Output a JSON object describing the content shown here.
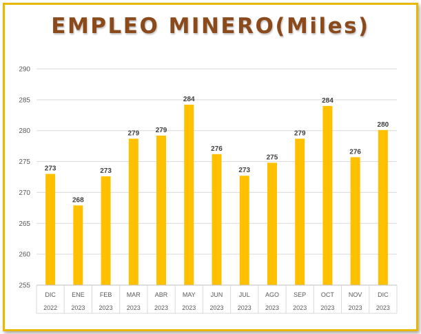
{
  "chart_data": {
    "type": "bar",
    "title": "EMPLEO MINERO(Miles)",
    "categories": [
      {
        "month": "DIC",
        "year": "2022"
      },
      {
        "month": "ENE",
        "year": "2023"
      },
      {
        "month": "FEB",
        "year": "2023"
      },
      {
        "month": "MAR",
        "year": "2023"
      },
      {
        "month": "ABR",
        "year": "2023"
      },
      {
        "month": "MAY",
        "year": "2023"
      },
      {
        "month": "JUN",
        "year": "2023"
      },
      {
        "month": "JUL",
        "year": "2023"
      },
      {
        "month": "AGO",
        "year": "2023"
      },
      {
        "month": "SEP",
        "year": "2023"
      },
      {
        "month": "OCT",
        "year": "2023"
      },
      {
        "month": "NOV",
        "year": "2023"
      },
      {
        "month": "DIC",
        "year": "2023"
      }
    ],
    "values": [
      273.0,
      267.9,
      272.6,
      278.7,
      279.2,
      284.2,
      276.2,
      272.7,
      274.8,
      278.7,
      284.0,
      275.7,
      280.1
    ],
    "data_labels": [
      "273",
      "268",
      "273",
      "279",
      "279",
      "284",
      "276",
      "273",
      "275",
      "279",
      "284",
      "276",
      "280"
    ],
    "ylim": [
      255,
      290
    ],
    "yticks": [
      255,
      260,
      265,
      270,
      275,
      280,
      285,
      290
    ],
    "grid": true,
    "bar_color": "#ffc000",
    "title_color": "#8b4a1c",
    "border_color": "#e8b800"
  }
}
